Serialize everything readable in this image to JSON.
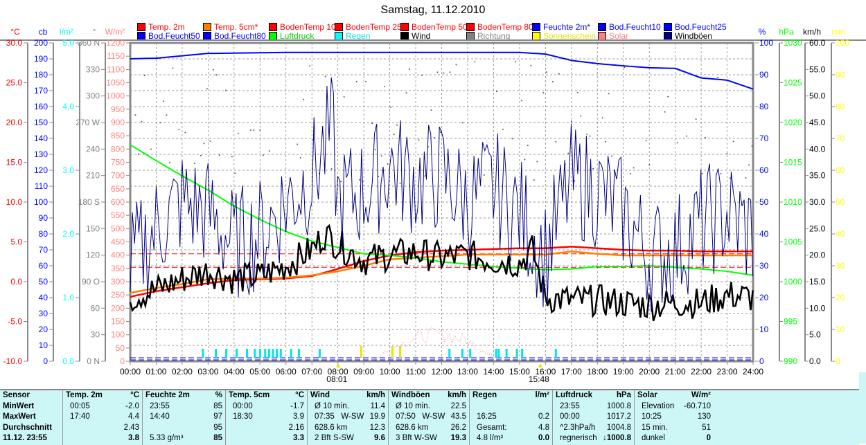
{
  "title": "Samstag, 11.12.2010",
  "legend": [
    {
      "label": "Temp. 2m",
      "color": "#ff0000",
      "text": "#ff0000"
    },
    {
      "label": "Temp. 5cm*",
      "color": "#ff8000",
      "text": "#ff0000"
    },
    {
      "label": "BodenTemp 10",
      "color": "#ff0000",
      "text": "#ff0000"
    },
    {
      "label": "BodenTemp 25",
      "color": "#ff0000",
      "text": "#ff0000"
    },
    {
      "label": "BodenTemp 50",
      "color": "#ff0000",
      "text": "#ff0000"
    },
    {
      "label": "BodenTemp 80",
      "color": "#ff0000",
      "text": "#ff0000"
    },
    {
      "label": "Feuchte 2m*",
      "color": "#0000ff",
      "text": "#0000ff"
    },
    {
      "label": "Bod.Feucht10",
      "color": "#0000ff",
      "text": "#0000ff"
    },
    {
      "label": "Bod.Feucht25",
      "color": "#0000ff",
      "text": "#0000ff"
    },
    {
      "label": "Bod.Feucht50",
      "color": "#0000ff",
      "text": "#0000ff"
    },
    {
      "label": "Bod.Feucht80",
      "color": "#0000ff",
      "text": "#0000ff"
    },
    {
      "label": "Luftdruck",
      "color": "#00ff00",
      "text": "#00cc00"
    },
    {
      "label": "Regen",
      "color": "#00ffff",
      "text": "#00e5e5"
    },
    {
      "label": "Wind",
      "color": "#000000",
      "text": "#000000"
    },
    {
      "label": "Richtung",
      "color": "#808080",
      "text": "#808080"
    },
    {
      "label": "Sonnenschein",
      "color": "#ffff00",
      "text": "#e5e500"
    },
    {
      "label": "Solar",
      "color": "#ff8080",
      "text": "#ff8080"
    },
    {
      "label": "Windböen",
      "color": "#000080",
      "text": "#000000"
    }
  ],
  "chart_data": {
    "type": "line",
    "title": "Samstag, 11.12.2010",
    "x_ticks": [
      "00:00",
      "01:00",
      "02:00",
      "03:00",
      "04:00",
      "05:00",
      "06:00",
      "07:00",
      "08:00",
      "09:00",
      "10:00",
      "11:00",
      "12:00",
      "13:00",
      "14:00",
      "15:00",
      "16:00",
      "17:00",
      "18:00",
      "19:00",
      "20:00",
      "21:00",
      "22:00",
      "23:00",
      "24:00"
    ],
    "sunrise": "08:01",
    "sunset": "15:48",
    "axes_left": [
      {
        "unit": "°C",
        "color": "#ff0000",
        "range": [
          -10,
          30
        ],
        "step": 5,
        "labels": [
          "-10.0",
          "-5.0",
          "0.0",
          "5.0",
          "10.0",
          "15.0",
          "20.0",
          "25.0",
          "30.0"
        ]
      },
      {
        "unit": "cb",
        "color": "#0000ff",
        "range": [
          0,
          200
        ],
        "step": 10
      },
      {
        "unit": "l/m²",
        "color": "#00ffff",
        "range": [
          0,
          5
        ],
        "step": 1,
        "labels": [
          "0.0",
          "1.0",
          "2.0",
          "3.0",
          "4.0",
          "5.0"
        ]
      },
      {
        "unit": "°",
        "color": "#808080",
        "range": [
          0,
          360
        ],
        "step": 30,
        "labels": [
          "0 N",
          "30",
          "60",
          "90 O",
          "120",
          "150",
          "180 S",
          "210",
          "240",
          "270 W",
          "300",
          "330",
          "360 N"
        ]
      },
      {
        "unit": "W/m²",
        "color": "#ff8080",
        "range": [
          0,
          1200
        ],
        "step": 50
      }
    ],
    "axes_right": [
      {
        "unit": "%",
        "color": "#0000ff",
        "range": [
          0,
          100
        ],
        "step": 10
      },
      {
        "unit": "hPa",
        "color": "#00ff00",
        "range": [
          990,
          1030
        ],
        "step": 5
      },
      {
        "unit": "km/h",
        "color": "#000000",
        "range": [
          0,
          60
        ],
        "step": 5,
        "labels": [
          "0.0",
          "5.0",
          "10.0",
          "15.0",
          "20.0",
          "25.0",
          "30.0",
          "35.0",
          "40.0",
          "45.0",
          "50.0",
          "55.0",
          "60.0"
        ]
      },
      {
        "unit": "min",
        "color": "#ffff00",
        "range": [
          0,
          100
        ],
        "step": 10
      }
    ],
    "series": [
      {
        "name": "Temp. 2m",
        "axis": "°C",
        "color": "#ff0000",
        "x": [
          0,
          1,
          2,
          3,
          4,
          5,
          6,
          7,
          8,
          9,
          10,
          11,
          12,
          13,
          14,
          15,
          16,
          17,
          18,
          19,
          20,
          21,
          22,
          23,
          24
        ],
        "y": [
          -1.9,
          -1.2,
          -0.7,
          -0.2,
          0.2,
          0.3,
          0.4,
          0.7,
          1.6,
          2.6,
          3.3,
          3.7,
          3.9,
          4.0,
          4.1,
          4.2,
          4.2,
          4.4,
          4.2,
          4.0,
          3.9,
          3.9,
          3.8,
          3.8,
          3.8
        ]
      },
      {
        "name": "Temp. 5cm*",
        "axis": "°C",
        "color": "#ff8000",
        "x": [
          0,
          1,
          2,
          3,
          4,
          5,
          6,
          7,
          8,
          9,
          10,
          11,
          12,
          13,
          14,
          15,
          16,
          17,
          18,
          19,
          20,
          21,
          22,
          23,
          24
        ],
        "y": [
          -1.4,
          -0.8,
          -0.3,
          0.3,
          0.4,
          0.4,
          0.5,
          0.8,
          1.3,
          2.0,
          2.8,
          3.0,
          3.2,
          3.4,
          3.4,
          3.4,
          3.4,
          3.8,
          3.5,
          3.3,
          3.3,
          3.3,
          3.3,
          3.3,
          3.3
        ]
      },
      {
        "name": "Luftdruck",
        "axis": "hPa",
        "color": "#00ff00",
        "x": [
          0,
          1,
          2,
          3,
          4,
          5,
          6,
          7,
          8,
          9,
          10,
          11,
          12,
          13,
          14,
          15,
          16,
          17,
          18,
          19,
          20,
          21,
          22,
          23,
          24
        ],
        "y": [
          1017.2,
          1015.2,
          1013.3,
          1011.5,
          1009.5,
          1007.8,
          1006.3,
          1005.1,
          1004.3,
          1003.5,
          1003.3,
          1003.0,
          1002.5,
          1002.2,
          1001.9,
          1001.7,
          1001.5,
          1001.6,
          1001.9,
          1001.9,
          1002.0,
          1001.8,
          1001.6,
          1001.3,
          1000.8
        ]
      },
      {
        "name": "Feuchte 2m*",
        "axis": "%",
        "color": "#0000ff",
        "x": [
          0,
          1,
          3,
          6,
          9,
          12,
          15,
          16,
          17,
          18,
          19,
          20,
          21,
          22,
          23,
          24
        ],
        "y": [
          95,
          95.2,
          96.7,
          97,
          97,
          97,
          97,
          96.5,
          94.5,
          93.5,
          92.8,
          92.2,
          92,
          89,
          88.3,
          85.5
        ]
      },
      {
        "name": "Wind",
        "axis": "km/h",
        "color": "#000000",
        "x": [
          0,
          1,
          2,
          3,
          4,
          5,
          6,
          7,
          7.5,
          8,
          9,
          10,
          11,
          12,
          13,
          14,
          15,
          15.5,
          16,
          17,
          18,
          19,
          20,
          21,
          22,
          23,
          24
        ],
        "y": [
          12,
          13.5,
          15.5,
          17,
          15.5,
          16,
          18,
          21,
          24,
          22,
          19,
          20,
          20.5,
          19.5,
          20,
          19,
          18.5,
          21,
          12,
          11.5,
          11.5,
          11,
          10.5,
          11,
          11,
          12.5,
          12
        ]
      },
      {
        "name": "Windböen",
        "axis": "km/h",
        "color": "#000080",
        "x": [
          0,
          1,
          2,
          3,
          4,
          5,
          6,
          7,
          7.8,
          8,
          9,
          10,
          11,
          12,
          13,
          14,
          15,
          16,
          17,
          18,
          19,
          20,
          21,
          22,
          23,
          24
        ],
        "y": [
          18,
          25,
          30,
          28,
          22,
          24,
          30,
          35,
          43.5,
          30,
          32,
          37,
          34,
          35,
          30,
          33,
          28,
          20,
          34,
          32,
          28,
          20,
          21,
          26,
          28,
          24
        ]
      }
    ],
    "solar_peak": {
      "time": "10:25",
      "value": 130
    },
    "rain_total": 4.8
  },
  "table": {
    "columns": [
      {
        "head": "Sensor",
        "unit": "",
        "rows": [
          [
            "MinWert",
            ""
          ],
          [
            "MaxWert",
            ""
          ],
          [
            "Durchschnitt",
            ""
          ],
          [
            "11.12. 23:55",
            ""
          ]
        ]
      },
      {
        "head": "Temp. 2m",
        "unit": "°C",
        "rows": [
          [
            "00:05",
            "-2.0"
          ],
          [
            "17:40",
            "4.4"
          ],
          [
            "",
            "2.43"
          ],
          [
            "",
            "3.8"
          ]
        ]
      },
      {
        "head": "Feuchte 2m",
        "unit": "%",
        "rows": [
          [
            "23:55",
            "85"
          ],
          [
            "14:40",
            "97"
          ],
          [
            "",
            "95"
          ],
          [
            "5.33 g/m³",
            "85"
          ]
        ]
      },
      {
        "head": "Temp. 5cm",
        "unit": "°C",
        "rows": [
          [
            "00:00",
            "-1.7"
          ],
          [
            "18:30",
            "3.9"
          ],
          [
            "",
            "2.16"
          ],
          [
            "",
            "3.3"
          ]
        ]
      },
      {
        "head": "Wind",
        "unit": "km/h",
        "rows": [
          [
            "Ø 10 min.",
            "11.4"
          ],
          [
            "07:35   W-SW",
            "19.9"
          ],
          [
            "628.6 km",
            "12.3"
          ],
          [
            "2 Bft S-SW",
            "9.6"
          ]
        ]
      },
      {
        "head": "Windböen",
        "unit": "km/h",
        "rows": [
          [
            "Ø 10 min.",
            "22.5"
          ],
          [
            "07:50   W-SW",
            "43.5"
          ],
          [
            "628.6 km",
            "26.2"
          ],
          [
            "3 Bft W-SW",
            "19.3"
          ]
        ]
      },
      {
        "head": "Regen",
        "unit": "l/m²",
        "rows": [
          [
            "",
            ""
          ],
          [
            "16:25",
            "0.2"
          ],
          [
            "Gesamt:",
            "4.8"
          ],
          [
            "4.8 l/m²",
            "0.0"
          ]
        ]
      },
      {
        "head": "Luftdruck",
        "unit": "hPa",
        "rows": [
          [
            "23:55",
            "1000.8"
          ],
          [
            "00:00",
            "1017.2"
          ],
          [
            "^2.3hPa/h",
            "1004.8"
          ],
          [
            "regnerisch",
            "↓1000.8"
          ]
        ]
      },
      {
        "head": "Solar",
        "unit": "W/m²",
        "rows": [
          [
            "Elevation",
            "-60.710"
          ],
          [
            "10:25",
            "130"
          ],
          [
            "15 min.",
            "51"
          ],
          [
            "dunkel",
            "0"
          ]
        ]
      }
    ]
  }
}
